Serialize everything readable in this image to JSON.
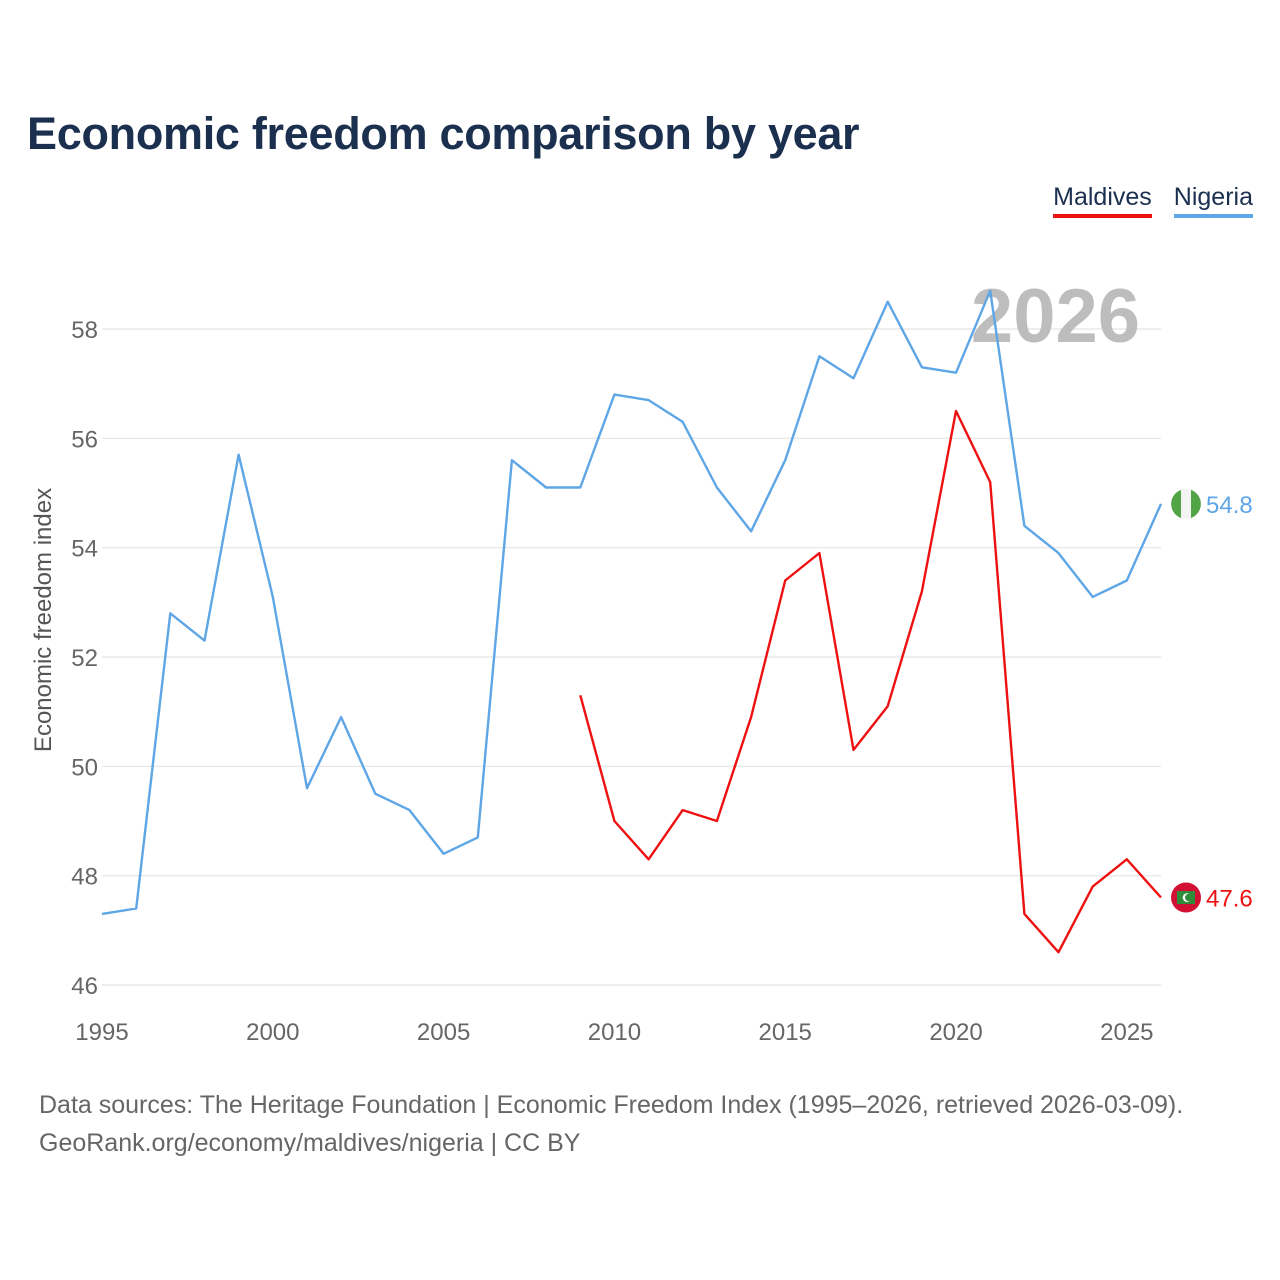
{
  "chart_data": {
    "type": "line",
    "title": "Economic freedom comparison by year",
    "ylabel": "Economic freedom index",
    "xlabel": "",
    "xlim": [
      1995,
      2026
    ],
    "ylim": [
      46,
      59
    ],
    "yticks": [
      46,
      48,
      50,
      52,
      54,
      56,
      58
    ],
    "xticks": [
      1995,
      2000,
      2005,
      2010,
      2015,
      2020,
      2025
    ],
    "year_overlay": "2026",
    "series": [
      {
        "name": "Maldives",
        "color": "#ee1111",
        "x": [
          2009,
          2010,
          2011,
          2012,
          2013,
          2014,
          2015,
          2016,
          2017,
          2018,
          2019,
          2020,
          2021,
          2022,
          2023,
          2024,
          2025,
          2026
        ],
        "values": [
          51.3,
          49.0,
          48.3,
          49.2,
          49.0,
          50.9,
          53.4,
          53.9,
          50.3,
          51.1,
          53.2,
          56.5,
          55.2,
          47.3,
          46.6,
          47.8,
          48.3,
          47.6
        ],
        "end_label": "47.6",
        "flag_icon": "maldives-flag-icon"
      },
      {
        "name": "Nigeria",
        "color": "#5ea6e6",
        "x": [
          1995,
          1996,
          1997,
          1998,
          1999,
          2000,
          2001,
          2002,
          2003,
          2004,
          2005,
          2006,
          2007,
          2008,
          2009,
          2010,
          2011,
          2012,
          2013,
          2014,
          2015,
          2016,
          2017,
          2018,
          2019,
          2020,
          2021,
          2022,
          2023,
          2024,
          2025,
          2026
        ],
        "values": [
          47.3,
          47.4,
          52.8,
          52.3,
          55.7,
          53.1,
          49.6,
          50.9,
          49.5,
          49.2,
          48.4,
          48.7,
          55.6,
          55.1,
          55.1,
          56.8,
          56.7,
          56.3,
          55.1,
          54.3,
          55.6,
          57.5,
          57.1,
          58.5,
          57.3,
          57.2,
          58.7,
          54.4,
          53.9,
          53.1,
          53.4,
          54.8
        ],
        "end_label": "54.8",
        "flag_icon": "nigeria-flag-icon"
      }
    ]
  },
  "legend": {
    "maldives": "Maldives",
    "nigeria": "Nigeria"
  },
  "source": {
    "line1": "Data sources: The Heritage Foundation | Economic Freedom Index (1995–2026, retrieved 2026-03-09).",
    "line2": "GeoRank.org/economy/maldives/nigeria | CC BY"
  }
}
